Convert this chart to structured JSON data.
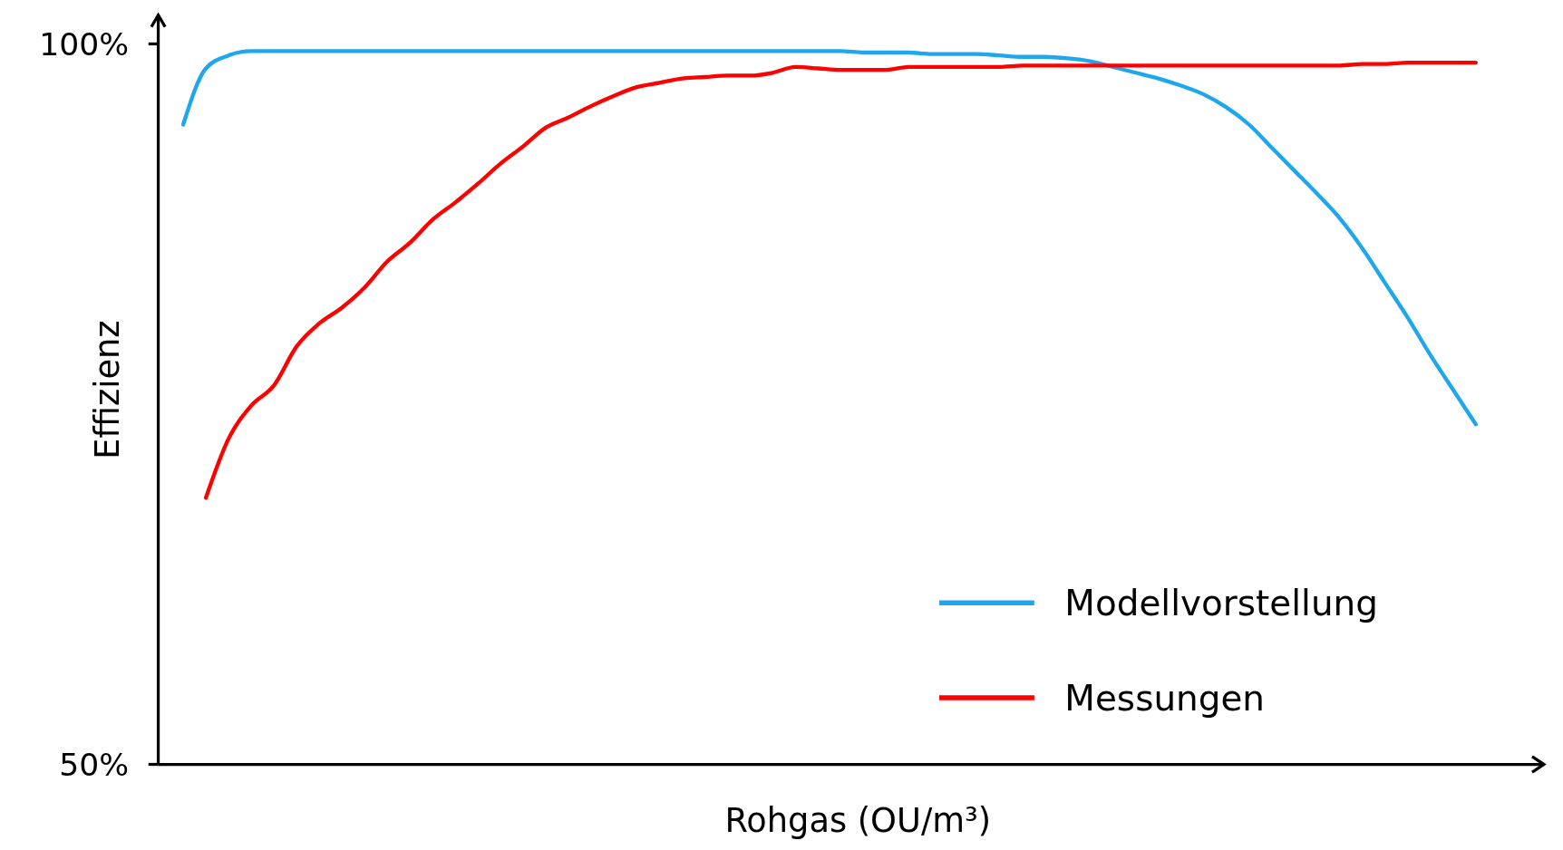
{
  "chart_data": {
    "type": "line",
    "xlabel": "Rohgas (OU/m³)",
    "ylabel": "Effizienz",
    "categories": [
      null,
      null,
      null,
      null,
      null,
      null,
      null,
      null,
      null,
      null,
      null,
      null,
      null,
      null,
      null,
      null,
      null,
      null,
      null,
      null,
      null,
      null,
      null,
      null,
      null,
      null,
      null,
      null,
      null,
      null,
      null,
      null,
      null,
      null,
      null,
      null,
      null,
      null,
      null,
      null,
      null,
      null,
      null,
      null,
      null,
      null,
      null,
      null,
      null,
      null,
      null,
      null,
      null,
      null,
      null,
      null,
      null,
      null
    ],
    "ylim": [
      50,
      102
    ],
    "yticks": [
      {
        "value": 50,
        "label": "50%"
      },
      {
        "value": 100,
        "label": "100%"
      }
    ],
    "legend": "bottom right",
    "grid": false,
    "tick_labels": "y",
    "line_style": "solid",
    "marker": "none",
    "series": [
      {
        "name": "Modellvorstellung",
        "color": "#1ea7ec",
        "values": [
          94.4,
          98.3,
          99.2,
          99.5,
          99.5,
          99.5,
          99.5,
          99.5,
          99.5,
          99.5,
          99.5,
          99.5,
          99.5,
          99.5,
          99.5,
          99.5,
          99.5,
          99.5,
          99.5,
          99.5,
          99.5,
          99.5,
          99.5,
          99.5,
          99.5,
          99.5,
          99.5,
          99.5,
          99.5,
          99.5,
          99.4,
          99.4,
          99.4,
          99.3,
          99.3,
          99.3,
          99.2,
          99.1,
          99.1,
          99.0,
          98.8,
          98.4,
          98.0,
          97.6,
          97.1,
          96.5,
          95.6,
          94.4,
          92.8,
          91.2,
          89.6,
          87.9,
          85.8,
          83.4,
          81.0,
          78.4,
          76.0,
          73.6
        ]
      },
      {
        "name": "Messungen",
        "color": "#ff0000",
        "values": [
          null,
          68.5,
          72.6,
          74.9,
          76.3,
          79.0,
          80.6,
          81.7,
          83.1,
          84.9,
          86.2,
          87.8,
          89.0,
          90.3,
          91.7,
          92.9,
          94.2,
          94.9,
          95.7,
          96.4,
          97.0,
          97.3,
          97.6,
          97.7,
          97.8,
          97.8,
          98.0,
          98.4,
          98.3,
          98.2,
          98.2,
          98.2,
          98.4,
          98.4,
          98.4,
          98.4,
          98.4,
          98.5,
          98.5,
          98.5,
          98.5,
          98.5,
          98.5,
          98.5,
          98.5,
          98.5,
          98.5,
          98.5,
          98.5,
          98.5,
          98.5,
          98.5,
          98.6,
          98.6,
          98.7,
          98.7,
          98.7,
          98.7
        ]
      }
    ]
  }
}
